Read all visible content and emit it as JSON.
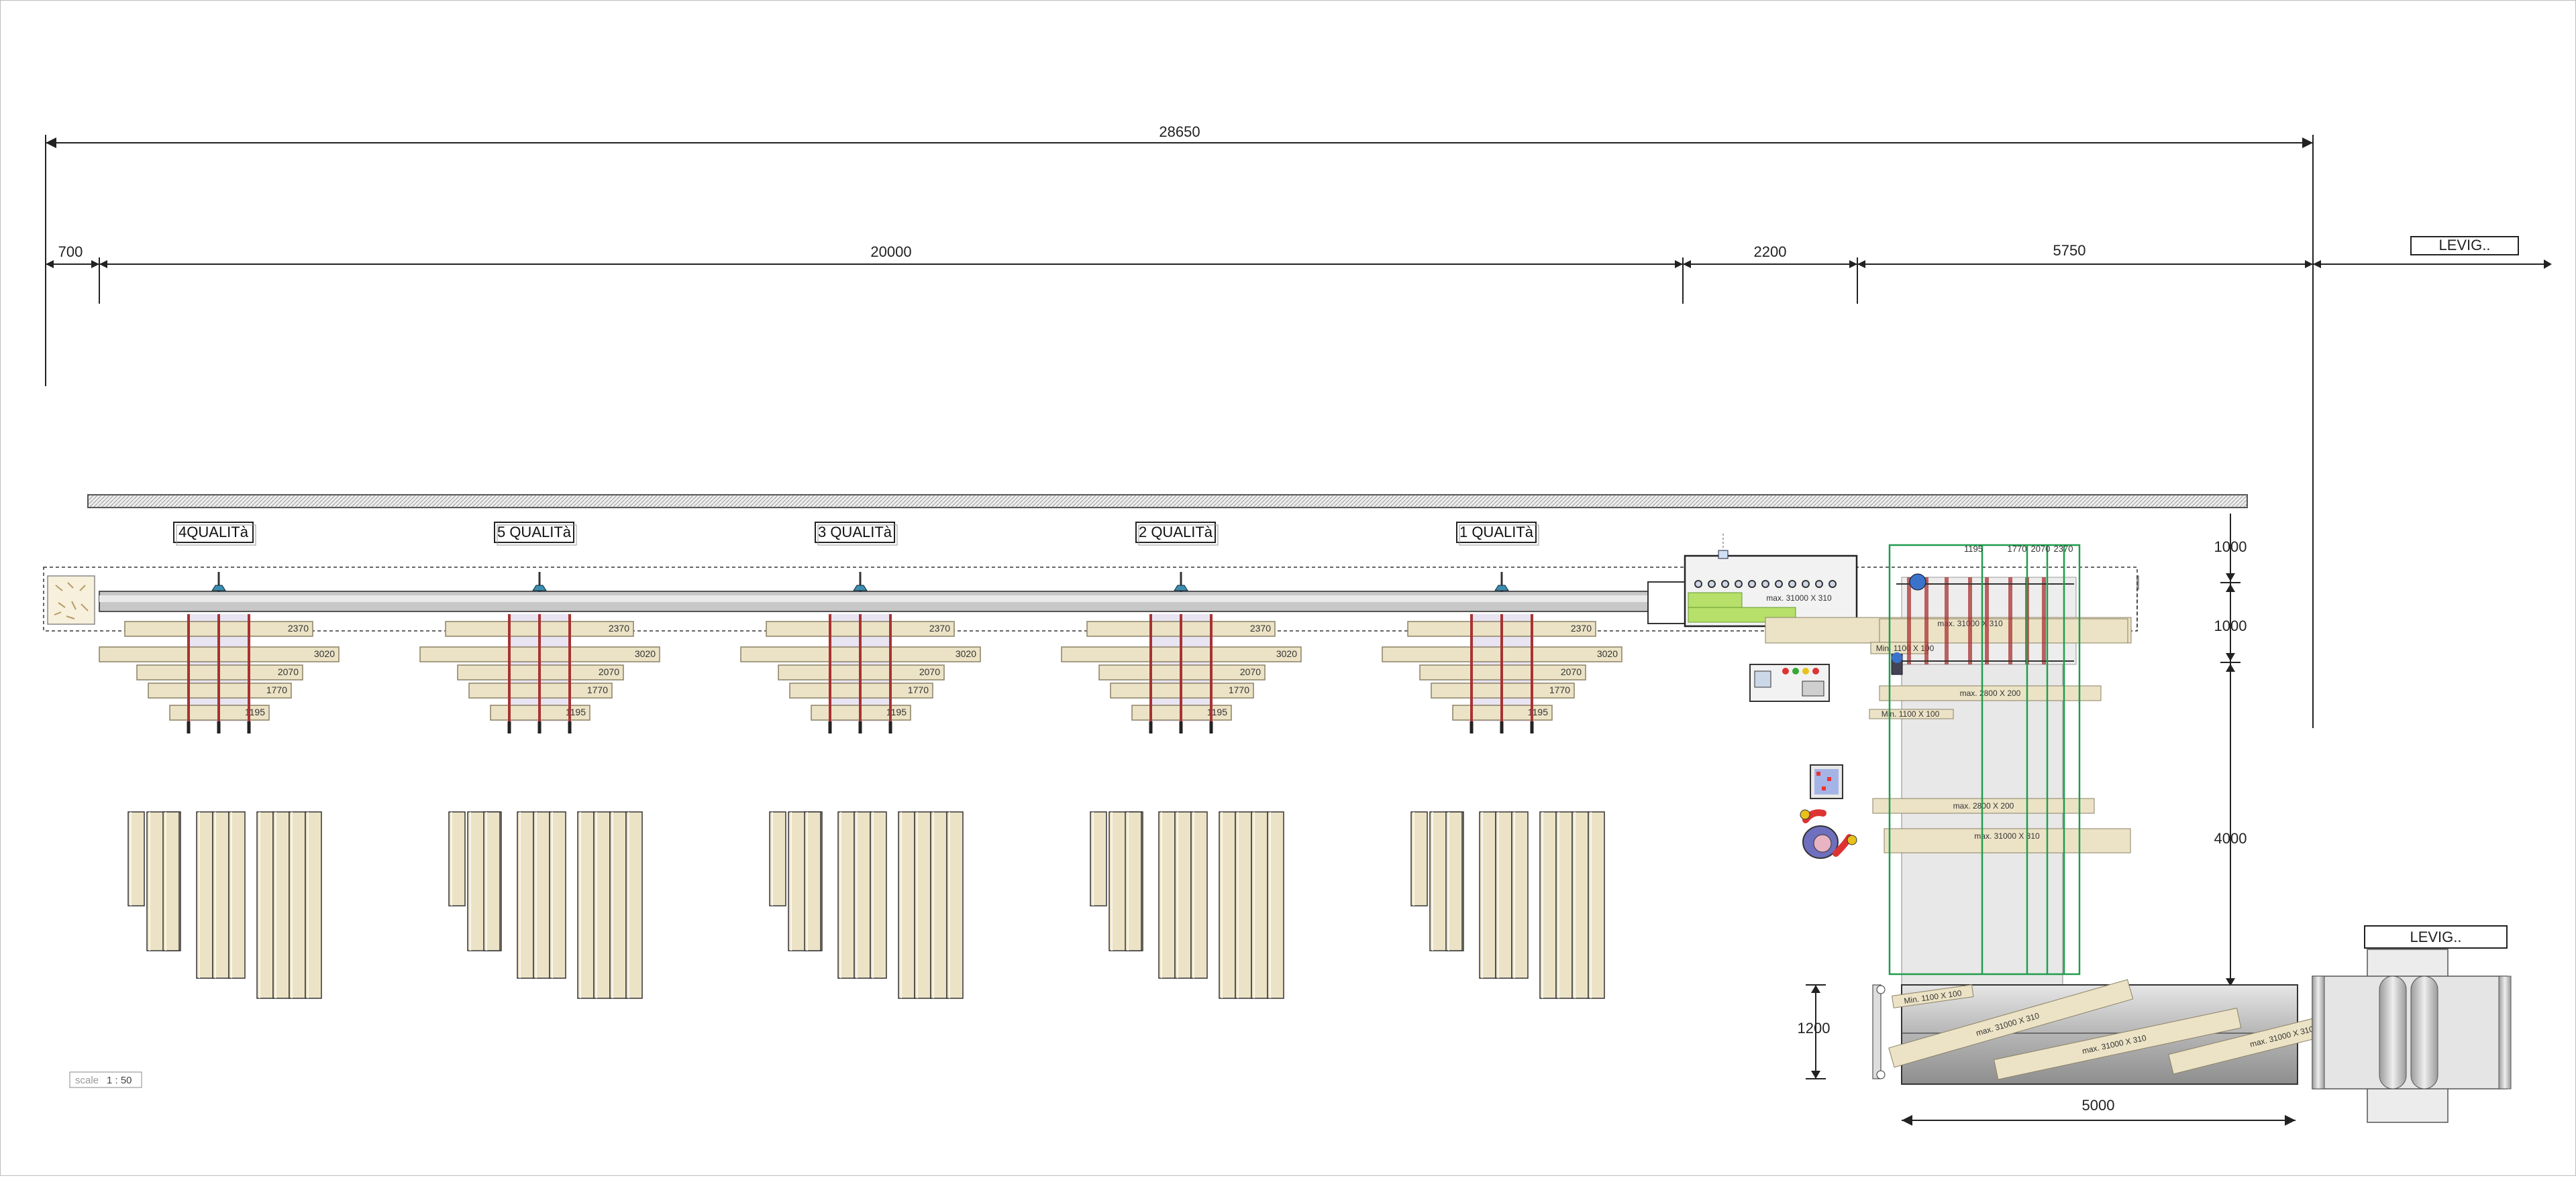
{
  "dimensions": {
    "overall": "28650",
    "seg_700": "700",
    "seg_20000": "20000",
    "seg_2200": "2200",
    "seg_5750": "5750",
    "v_1000_top": "1000",
    "v_1000_mid": "1000",
    "v_4000": "4000",
    "v_1200": "1200",
    "h_5000": "5000"
  },
  "labels": {
    "levig_top": "LEVIG..",
    "levig_bottom": "LEVIG..",
    "scale_prefix": "scale",
    "scale_value": "1 : 50"
  },
  "stations": [
    {
      "label": "4QUALITà"
    },
    {
      "label": "5 QUALITà"
    },
    {
      "label": "3 QUALITà"
    },
    {
      "label": "2 QUALITà"
    },
    {
      "label": "1 QUALITà"
    }
  ],
  "stack_lengths": [
    "2370",
    "3020",
    "2070",
    "1770",
    "1195"
  ],
  "machine": {
    "top_lengths": [
      "1195",
      "1770",
      "2070",
      "2370"
    ],
    "board_labels": [
      "max. 31000 X 310",
      "max. 31000 X 310",
      "Min. 1100 X 100",
      "max. 2800 X 200",
      "Min. 1100 X 100",
      "max. 2800 X 200",
      "max. 31000 X 310"
    ],
    "bottom_board_labels": [
      "Min. 1100 X 100",
      "max. 31000 X 310",
      "max. 31000 X 310",
      "max. 31000 X 310"
    ]
  },
  "colors": {
    "wood": "#ece3c6",
    "wood_stroke": "#8a8065",
    "steel": "#c8c8c8",
    "green_line": "#1f9d4d",
    "red_line": "#a83232",
    "dark": "#222222"
  }
}
